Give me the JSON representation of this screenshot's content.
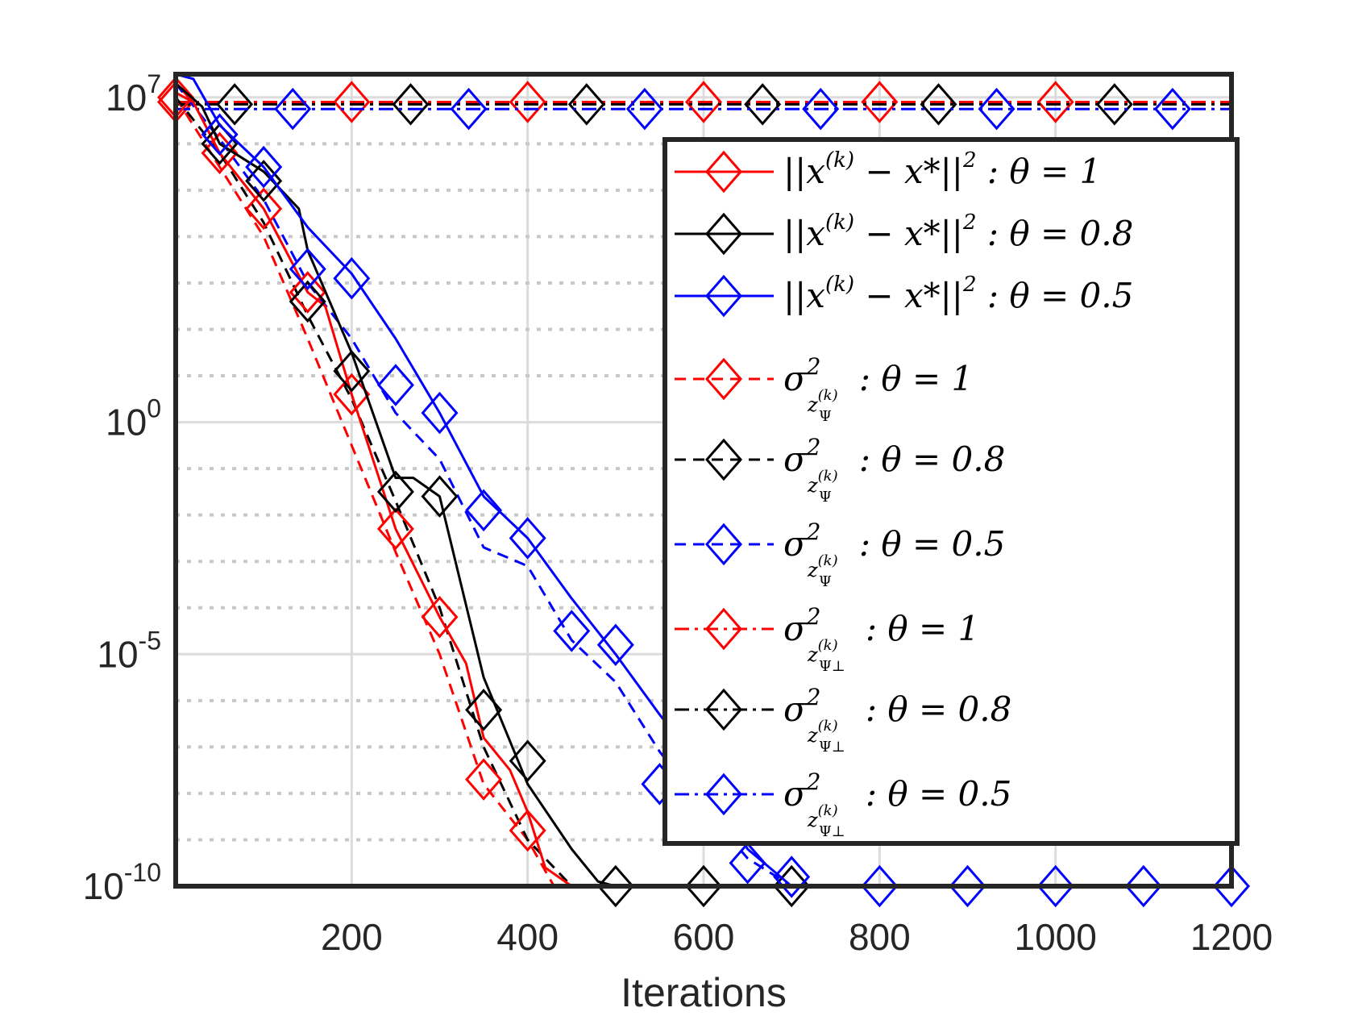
{
  "chart_data": {
    "type": "line",
    "xlabel": "Iterations",
    "ylabel": "",
    "xlim": [
      0,
      1200
    ],
    "ylim_log10": [
      -10,
      7.5
    ],
    "y_scale": "log",
    "grid": true,
    "legend_position": "top-right (inside)",
    "xticks": [
      "200",
      "400",
      "600",
      "800",
      "1000",
      "1200"
    ],
    "yticks": [
      {
        "base": "10",
        "exp": "7",
        "log": 7
      },
      {
        "base": "10",
        "exp": "0",
        "log": 0
      },
      {
        "base": "10",
        "exp": "-5",
        "log": -5
      },
      {
        "base": "10",
        "exp": "-10",
        "log": -10
      }
    ],
    "colors": {
      "red": "#ff0000",
      "black": "#000000",
      "blue": "#0000ff"
    },
    "series": [
      {
        "name": "||x^(k) - x*||^2 : θ = 1",
        "color": "#ff0000",
        "dash": "solid",
        "points": [
          [
            0,
            7.1
          ],
          [
            20,
            6.9
          ],
          [
            50,
            5.8
          ],
          [
            100,
            4.6
          ],
          [
            150,
            2.8
          ],
          [
            170,
            2.5
          ],
          [
            200,
            0.6
          ],
          [
            250,
            -2.3
          ],
          [
            300,
            -4.2
          ],
          [
            330,
            -5.2
          ],
          [
            350,
            -6.8
          ],
          [
            380,
            -7.5
          ],
          [
            400,
            -8.4
          ],
          [
            420,
            -9.6
          ],
          [
            450,
            -10
          ],
          [
            1200,
            -10
          ]
        ],
        "markers": [
          [
            0,
            7
          ],
          [
            50,
            5.8
          ],
          [
            100,
            4.6
          ],
          [
            150,
            2.8
          ],
          [
            200,
            0.6
          ],
          [
            250,
            -2.3
          ],
          [
            300,
            -4.2
          ],
          [
            350,
            -7.7
          ],
          [
            400,
            -8.8
          ]
        ]
      },
      {
        "name": "||x^(k) - x*||^2 : θ = 0.8",
        "color": "#000000",
        "dash": "solid",
        "points": [
          [
            0,
            7.3
          ],
          [
            30,
            6.8
          ],
          [
            50,
            6.0
          ],
          [
            100,
            5.4
          ],
          [
            140,
            4.6
          ],
          [
            150,
            3.7
          ],
          [
            200,
            1.5
          ],
          [
            250,
            -1.2
          ],
          [
            270,
            -1.2
          ],
          [
            300,
            -1.6
          ],
          [
            350,
            -5.5
          ],
          [
            400,
            -7.8
          ],
          [
            450,
            -9.2
          ],
          [
            480,
            -9.9
          ],
          [
            500,
            -10
          ],
          [
            1200,
            -10
          ]
        ],
        "markers": [
          [
            50,
            6.0
          ],
          [
            100,
            5.2
          ],
          [
            150,
            2.6
          ],
          [
            200,
            1.1
          ],
          [
            250,
            -1.5
          ],
          [
            300,
            -1.6
          ],
          [
            350,
            -6.2
          ],
          [
            400,
            -7.3
          ],
          [
            500,
            -10
          ],
          [
            600,
            -10
          ],
          [
            700,
            -10
          ]
        ]
      },
      {
        "name": "||x^(k) - x*||^2 : θ = 0.5",
        "color": "#0000ff",
        "dash": "solid",
        "points": [
          [
            0,
            7.5
          ],
          [
            20,
            7.4
          ],
          [
            50,
            6.4
          ],
          [
            100,
            5.5
          ],
          [
            150,
            4.2
          ],
          [
            200,
            3.2
          ],
          [
            250,
            1.8
          ],
          [
            300,
            0.2
          ],
          [
            350,
            -1.6
          ],
          [
            400,
            -2.5
          ],
          [
            450,
            -3.8
          ],
          [
            500,
            -5.0
          ],
          [
            550,
            -6.3
          ],
          [
            600,
            -7.5
          ],
          [
            650,
            -9.2
          ],
          [
            700,
            -10
          ],
          [
            1200,
            -10
          ]
        ],
        "markers": [
          [
            50,
            6.2
          ],
          [
            100,
            5.5
          ],
          [
            150,
            3.3
          ],
          [
            200,
            3.1
          ],
          [
            250,
            0.8
          ],
          [
            300,
            0.2
          ],
          [
            350,
            -1.9
          ],
          [
            400,
            -2.5
          ],
          [
            450,
            -4.5
          ],
          [
            500,
            -4.8
          ],
          [
            550,
            -7.8
          ],
          [
            650,
            -9.5
          ],
          [
            700,
            -9.8
          ],
          [
            800,
            -10
          ],
          [
            900,
            -10
          ],
          [
            1000,
            -10
          ],
          [
            1100,
            -10
          ],
          [
            1200,
            -10
          ]
        ]
      },
      {
        "name": "σ²_z_Ψ^(k) : θ = 1",
        "color": "#ff0000",
        "dash": "dashed",
        "points": [
          [
            0,
            7.0
          ],
          [
            50,
            5.5
          ],
          [
            100,
            4.0
          ],
          [
            150,
            1.8
          ],
          [
            200,
            -0.5
          ],
          [
            250,
            -2.8
          ],
          [
            300,
            -5.0
          ],
          [
            350,
            -7.8
          ],
          [
            400,
            -9.0
          ],
          [
            430,
            -10
          ],
          [
            1200,
            -10
          ]
        ],
        "markers": []
      },
      {
        "name": "σ²_z_Ψ^(k) : θ = 0.8",
        "color": "#000000",
        "dash": "dashed",
        "points": [
          [
            0,
            7.0
          ],
          [
            50,
            5.8
          ],
          [
            100,
            4.3
          ],
          [
            150,
            2.3
          ],
          [
            200,
            0.5
          ],
          [
            250,
            -1.7
          ],
          [
            300,
            -4.0
          ],
          [
            350,
            -7.0
          ],
          [
            400,
            -9.0
          ],
          [
            450,
            -10
          ],
          [
            1200,
            -10
          ]
        ],
        "markers": []
      },
      {
        "name": "σ²_z_Ψ^(k) : θ = 0.5",
        "color": "#0000ff",
        "dash": "dashed",
        "points": [
          [
            0,
            7.3
          ],
          [
            50,
            6.1
          ],
          [
            100,
            4.8
          ],
          [
            150,
            3.0
          ],
          [
            200,
            1.8
          ],
          [
            250,
            0.2
          ],
          [
            300,
            -0.8
          ],
          [
            350,
            -2.7
          ],
          [
            400,
            -3.1
          ],
          [
            450,
            -4.7
          ],
          [
            500,
            -5.6
          ],
          [
            550,
            -7.1
          ],
          [
            600,
            -8.3
          ],
          [
            650,
            -9.4
          ],
          [
            700,
            -10
          ],
          [
            1200,
            -10
          ]
        ],
        "markers": []
      },
      {
        "name": "σ²_z_Ψ⊥^(k) : θ = 1",
        "color": "#ff0000",
        "dash": "dashdot",
        "points": [
          [
            0,
            6.9
          ],
          [
            1200,
            6.9
          ]
        ],
        "markers": [
          [
            0,
            6.9
          ],
          [
            200,
            6.9
          ],
          [
            400,
            6.9
          ],
          [
            600,
            6.9
          ],
          [
            800,
            6.9
          ],
          [
            1000,
            6.9
          ]
        ]
      },
      {
        "name": "σ²_z_Ψ⊥^(k) : θ = 0.8",
        "color": "#000000",
        "dash": "dashdot",
        "points": [
          [
            0,
            6.85
          ],
          [
            1200,
            6.85
          ]
        ],
        "markers": [
          [
            67,
            6.85
          ],
          [
            267,
            6.85
          ],
          [
            467,
            6.85
          ],
          [
            667,
            6.85
          ],
          [
            867,
            6.85
          ],
          [
            1067,
            6.85
          ]
        ]
      },
      {
        "name": "σ²_z_Ψ⊥^(k) : θ = 0.5",
        "color": "#0000ff",
        "dash": "dashdot",
        "points": [
          [
            0,
            6.75
          ],
          [
            1200,
            6.75
          ]
        ],
        "markers": [
          [
            133,
            6.75
          ],
          [
            333,
            6.75
          ],
          [
            533,
            6.75
          ],
          [
            733,
            6.75
          ],
          [
            933,
            6.75
          ],
          [
            1133,
            6.75
          ]
        ]
      }
    ],
    "legend": [
      {
        "color": "#ff0000",
        "dash": "solid",
        "kind": "err",
        "theta": "θ = 1"
      },
      {
        "color": "#000000",
        "dash": "solid",
        "kind": "err",
        "theta": "θ = 0.8"
      },
      {
        "color": "#0000ff",
        "dash": "solid",
        "kind": "err",
        "theta": "θ = 0.5"
      },
      {
        "color": "#ff0000",
        "dash": "dashed",
        "kind": "sigma",
        "sub": "Ψ",
        "theta": "θ = 1"
      },
      {
        "color": "#000000",
        "dash": "dashed",
        "kind": "sigma",
        "sub": "Ψ",
        "theta": "θ = 0.8"
      },
      {
        "color": "#0000ff",
        "dash": "dashed",
        "kind": "sigma",
        "sub": "Ψ",
        "theta": "θ = 0.5"
      },
      {
        "color": "#ff0000",
        "dash": "dashdot",
        "kind": "sigma",
        "sub": "Ψ⊥",
        "theta": "θ = 1"
      },
      {
        "color": "#000000",
        "dash": "dashdot",
        "kind": "sigma",
        "sub": "Ψ⊥",
        "theta": "θ = 0.8"
      },
      {
        "color": "#0000ff",
        "dash": "dashdot",
        "kind": "sigma",
        "sub": "Ψ⊥",
        "theta": "θ = 0.5"
      }
    ],
    "legend_text": {
      "err_prefix": "||x",
      "err_sup": "(k)",
      "err_mid": " − x*||",
      "err_sq": "2",
      "sigma": "σ",
      "sigma_sq": "2",
      "z": "z",
      "k": "(k)",
      "colon": ":"
    }
  }
}
